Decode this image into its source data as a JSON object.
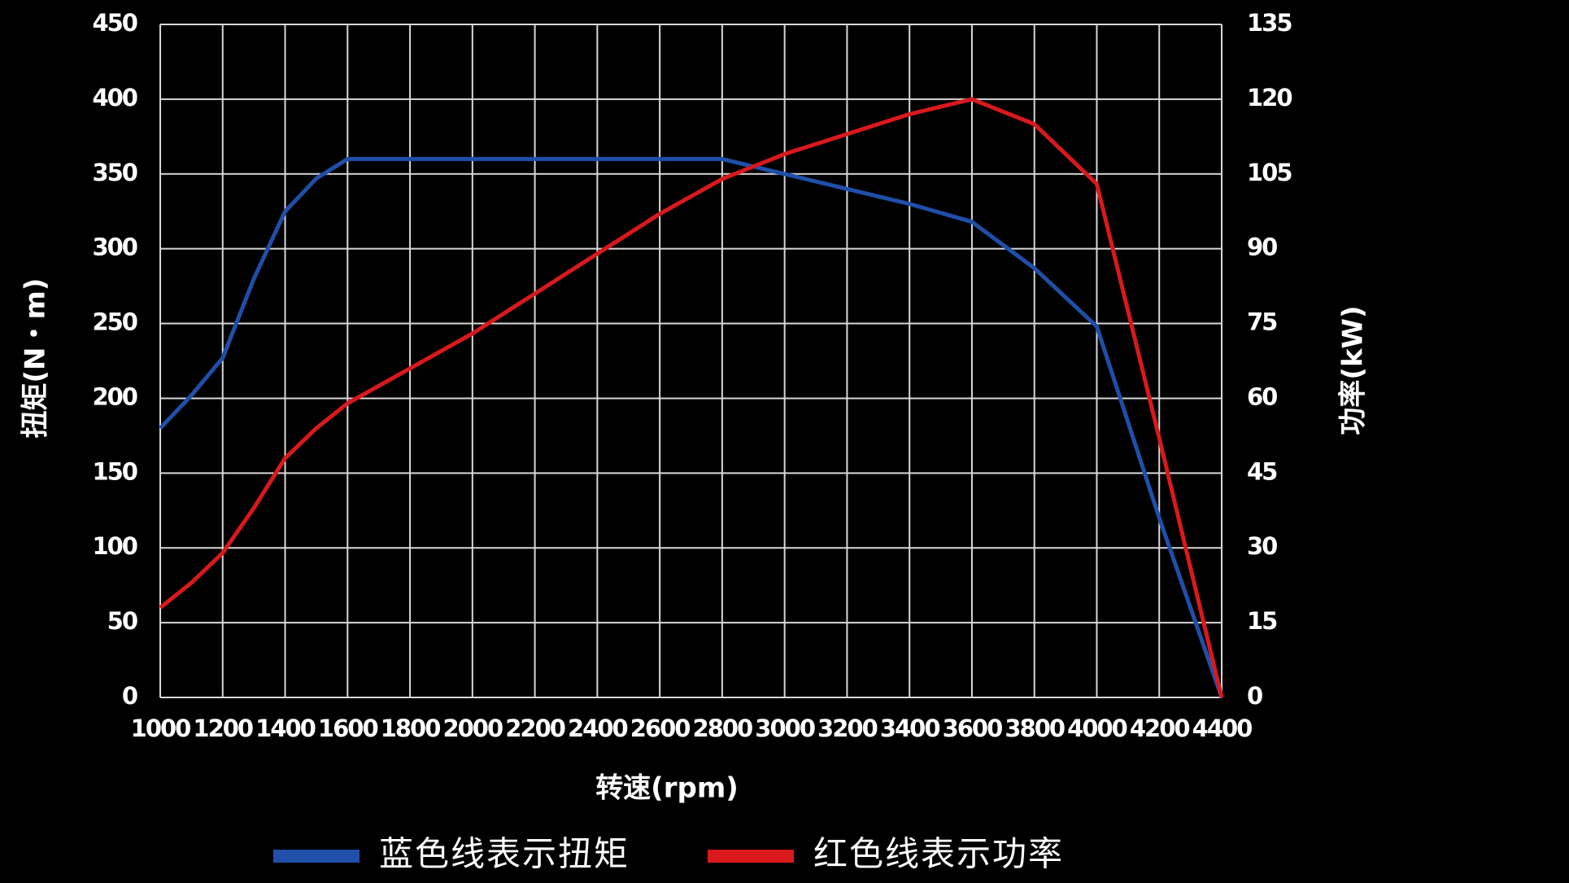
{
  "chart_data": {
    "type": "line",
    "x_label": "转速(rpm)",
    "y_label": "扭矩(N・m)",
    "y2_label": "功率(kW)",
    "x": [
      1000,
      1100,
      1200,
      1300,
      1400,
      1500,
      1600,
      1800,
      2000,
      2200,
      2400,
      2600,
      2800,
      3000,
      3200,
      3400,
      3600,
      3800,
      4000,
      4200,
      4400
    ],
    "series": [
      {
        "name": "蓝色线表示扭矩",
        "color": "#1f4fa8",
        "values": [
          180,
          202,
          227,
          280,
          325,
          347,
          360,
          360,
          360,
          360,
          360,
          360,
          360,
          350,
          340,
          330,
          318,
          287,
          248,
          120,
          0
        ]
      },
      {
        "name": "红色线表示功率",
        "color": "#d9191c",
        "axis": "y2",
        "values": [
          18,
          23,
          29,
          38,
          48,
          54,
          59,
          66,
          73,
          81,
          89,
          97,
          104,
          109,
          113,
          117,
          120,
          115,
          103,
          52,
          0
        ]
      }
    ],
    "xlim": [
      1000,
      4400
    ],
    "xticks": [
      1000,
      1200,
      1400,
      1600,
      1800,
      2000,
      2200,
      2400,
      2600,
      2800,
      3000,
      3200,
      3400,
      3600,
      3800,
      4000,
      4200,
      4400
    ],
    "ylim": [
      0,
      450
    ],
    "yticks": [
      0,
      50,
      100,
      150,
      200,
      250,
      300,
      350,
      400,
      450
    ],
    "y2lim": [
      0,
      135
    ],
    "y2ticks": [
      0,
      15,
      30,
      45,
      60,
      75,
      90,
      105,
      120,
      135
    ],
    "grid": true
  }
}
